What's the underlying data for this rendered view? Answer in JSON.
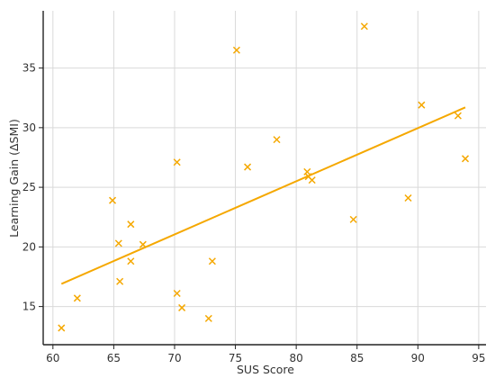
{
  "chart_data": {
    "type": "scatter",
    "title": "",
    "xlabel": "SUS Score",
    "ylabel": "Learning Gain (ΔSMI)",
    "xlim": [
      59.2,
      95.6
    ],
    "ylim": [
      11.8,
      39.8
    ],
    "x_ticks": [
      60,
      65,
      70,
      75,
      80,
      85,
      90,
      95
    ],
    "y_ticks": [
      15,
      20,
      25,
      30,
      35
    ],
    "x_tick_labels": [
      "60",
      "65",
      "70",
      "75",
      "80",
      "85",
      "90",
      "95"
    ],
    "y_tick_labels": [
      "15",
      "20",
      "25",
      "30",
      "35"
    ],
    "grid": true,
    "marker": "x",
    "series": [
      {
        "name": "",
        "color": "#F5A800",
        "points": [
          {
            "x": 60.7,
            "y": 13.2
          },
          {
            "x": 62.0,
            "y": 15.7
          },
          {
            "x": 64.9,
            "y": 23.9
          },
          {
            "x": 65.4,
            "y": 20.3
          },
          {
            "x": 65.5,
            "y": 17.1
          },
          {
            "x": 66.4,
            "y": 21.9
          },
          {
            "x": 66.4,
            "y": 18.8
          },
          {
            "x": 67.4,
            "y": 20.2
          },
          {
            "x": 70.2,
            "y": 27.1
          },
          {
            "x": 70.2,
            "y": 16.1
          },
          {
            "x": 70.6,
            "y": 14.9
          },
          {
            "x": 72.8,
            "y": 14.0
          },
          {
            "x": 73.1,
            "y": 18.8
          },
          {
            "x": 75.1,
            "y": 36.5
          },
          {
            "x": 76.0,
            "y": 26.7
          },
          {
            "x": 78.4,
            "y": 29.0
          },
          {
            "x": 80.9,
            "y": 26.3
          },
          {
            "x": 81.0,
            "y": 25.9
          },
          {
            "x": 81.3,
            "y": 25.6
          },
          {
            "x": 84.7,
            "y": 22.3
          },
          {
            "x": 85.6,
            "y": 38.5
          },
          {
            "x": 89.2,
            "y": 24.1
          },
          {
            "x": 90.3,
            "y": 31.9
          },
          {
            "x": 93.3,
            "y": 31.0
          },
          {
            "x": 93.9,
            "y": 27.4
          }
        ]
      }
    ],
    "trendline": {
      "color": "#F5A800",
      "x": [
        60.7,
        93.9
      ],
      "y": [
        16.9,
        31.7
      ]
    }
  }
}
